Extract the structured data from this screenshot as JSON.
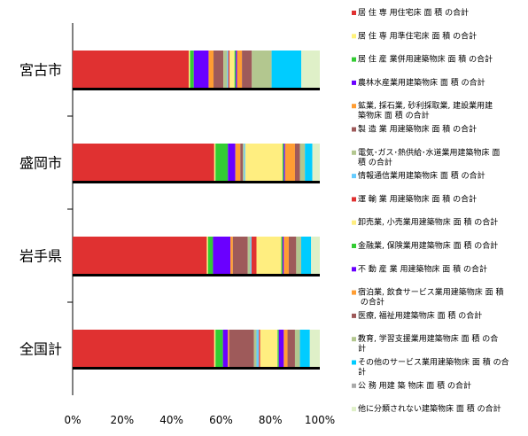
{
  "chart_data": {
    "type": "bar",
    "orientation": "horizontal",
    "stacked": "percent",
    "categories": [
      "宮古市",
      "盛岡市",
      "岩手県",
      "全国計"
    ],
    "xlim": [
      0,
      100
    ],
    "xticks": [
      "0%",
      "20%",
      "40%",
      "60%",
      "80%",
      "100%"
    ],
    "legend_position": "right",
    "series": [
      {
        "name": "居 住 専 用住宅床 面 積 の合計",
        "color": "#e03131",
        "values": [
          47,
          57,
          54,
          57
        ]
      },
      {
        "name": "居 住 専 用準住宅床 面 積 の合計",
        "color": "#fff27a",
        "values": [
          0.5,
          0.5,
          0.5,
          0.5
        ]
      },
      {
        "name": "居 住 産 業併用建築物床 面 積 の合計",
        "color": "#33cc33",
        "values": [
          1.5,
          5,
          2,
          3
        ]
      },
      {
        "name": "農林水産業用建築物床 面 積 の合計",
        "color": "#6a00ff",
        "values": [
          6,
          3,
          7,
          2
        ]
      },
      {
        "name": "鉱業, 採石業, 砂利採取業, 建設業用建築物床 面 積 の合計",
        "color": "#ff9d33",
        "values": [
          2,
          2,
          1,
          0.5
        ]
      },
      {
        "name": "製 造 業 用建築物床 面 積 の合計",
        "color": "#9e5a5a",
        "values": [
          4,
          1,
          6,
          10
        ]
      },
      {
        "name": "電気･ガス･熱供給･水道業用建築物床 面 積 の合計",
        "color": "#b3c78f",
        "values": [
          1.5,
          0.5,
          1,
          1
        ]
      },
      {
        "name": "情報通信業用建築物床 面 積 の合計",
        "color": "#66ccff",
        "values": [
          0.5,
          0.5,
          0.5,
          1
        ]
      },
      {
        "name": "運 輸 業 用建築物床 面 積 の合計",
        "color": "#e03131",
        "values": [
          0.5,
          0,
          2,
          0.5
        ]
      },
      {
        "name": "卸売業, 小売業用建築物床 面 積 の合計",
        "color": "#ffee80",
        "values": [
          2,
          15,
          10,
          7
        ]
      },
      {
        "name": "金融業, 保険業用建築物床 面 積 の合計",
        "color": "#33cc33",
        "values": [
          0.5,
          0.5,
          0.5,
          0.5
        ]
      },
      {
        "name": "不 動 産 業 用建築物床 面 積 の合計",
        "color": "#6a00ff",
        "values": [
          0.5,
          0.5,
          0.5,
          2
        ]
      },
      {
        "name": "宿泊業, 飲食サービス業用建築物床 面 積 の合計",
        "color": "#ff9d33",
        "values": [
          2,
          4,
          2,
          1.5
        ]
      },
      {
        "name": "医療, 福祉用建築物床 面 積 の合計",
        "color": "#9e5a5a",
        "values": [
          4,
          2,
          3,
          3
        ]
      },
      {
        "name": "教育, 学習支援業用建築物床 面 積 の合計",
        "color": "#b3c78f",
        "values": [
          8,
          2,
          2,
          2
        ]
      },
      {
        "name": "その他のサービス業用建築物床 面 積 の合計",
        "color": "#00ccff",
        "values": [
          12,
          3,
          4,
          4
        ]
      },
      {
        "name": "公 務 用建 築 物床 面 積 の合計",
        "color": "#aaaaaa",
        "values": [
          0,
          0,
          0,
          0
        ]
      },
      {
        "name": "他に分類されない建築物床 面 積 の合計",
        "color": "#dff0c8",
        "values": [
          7.5,
          3,
          3.5,
          4
        ]
      }
    ]
  }
}
